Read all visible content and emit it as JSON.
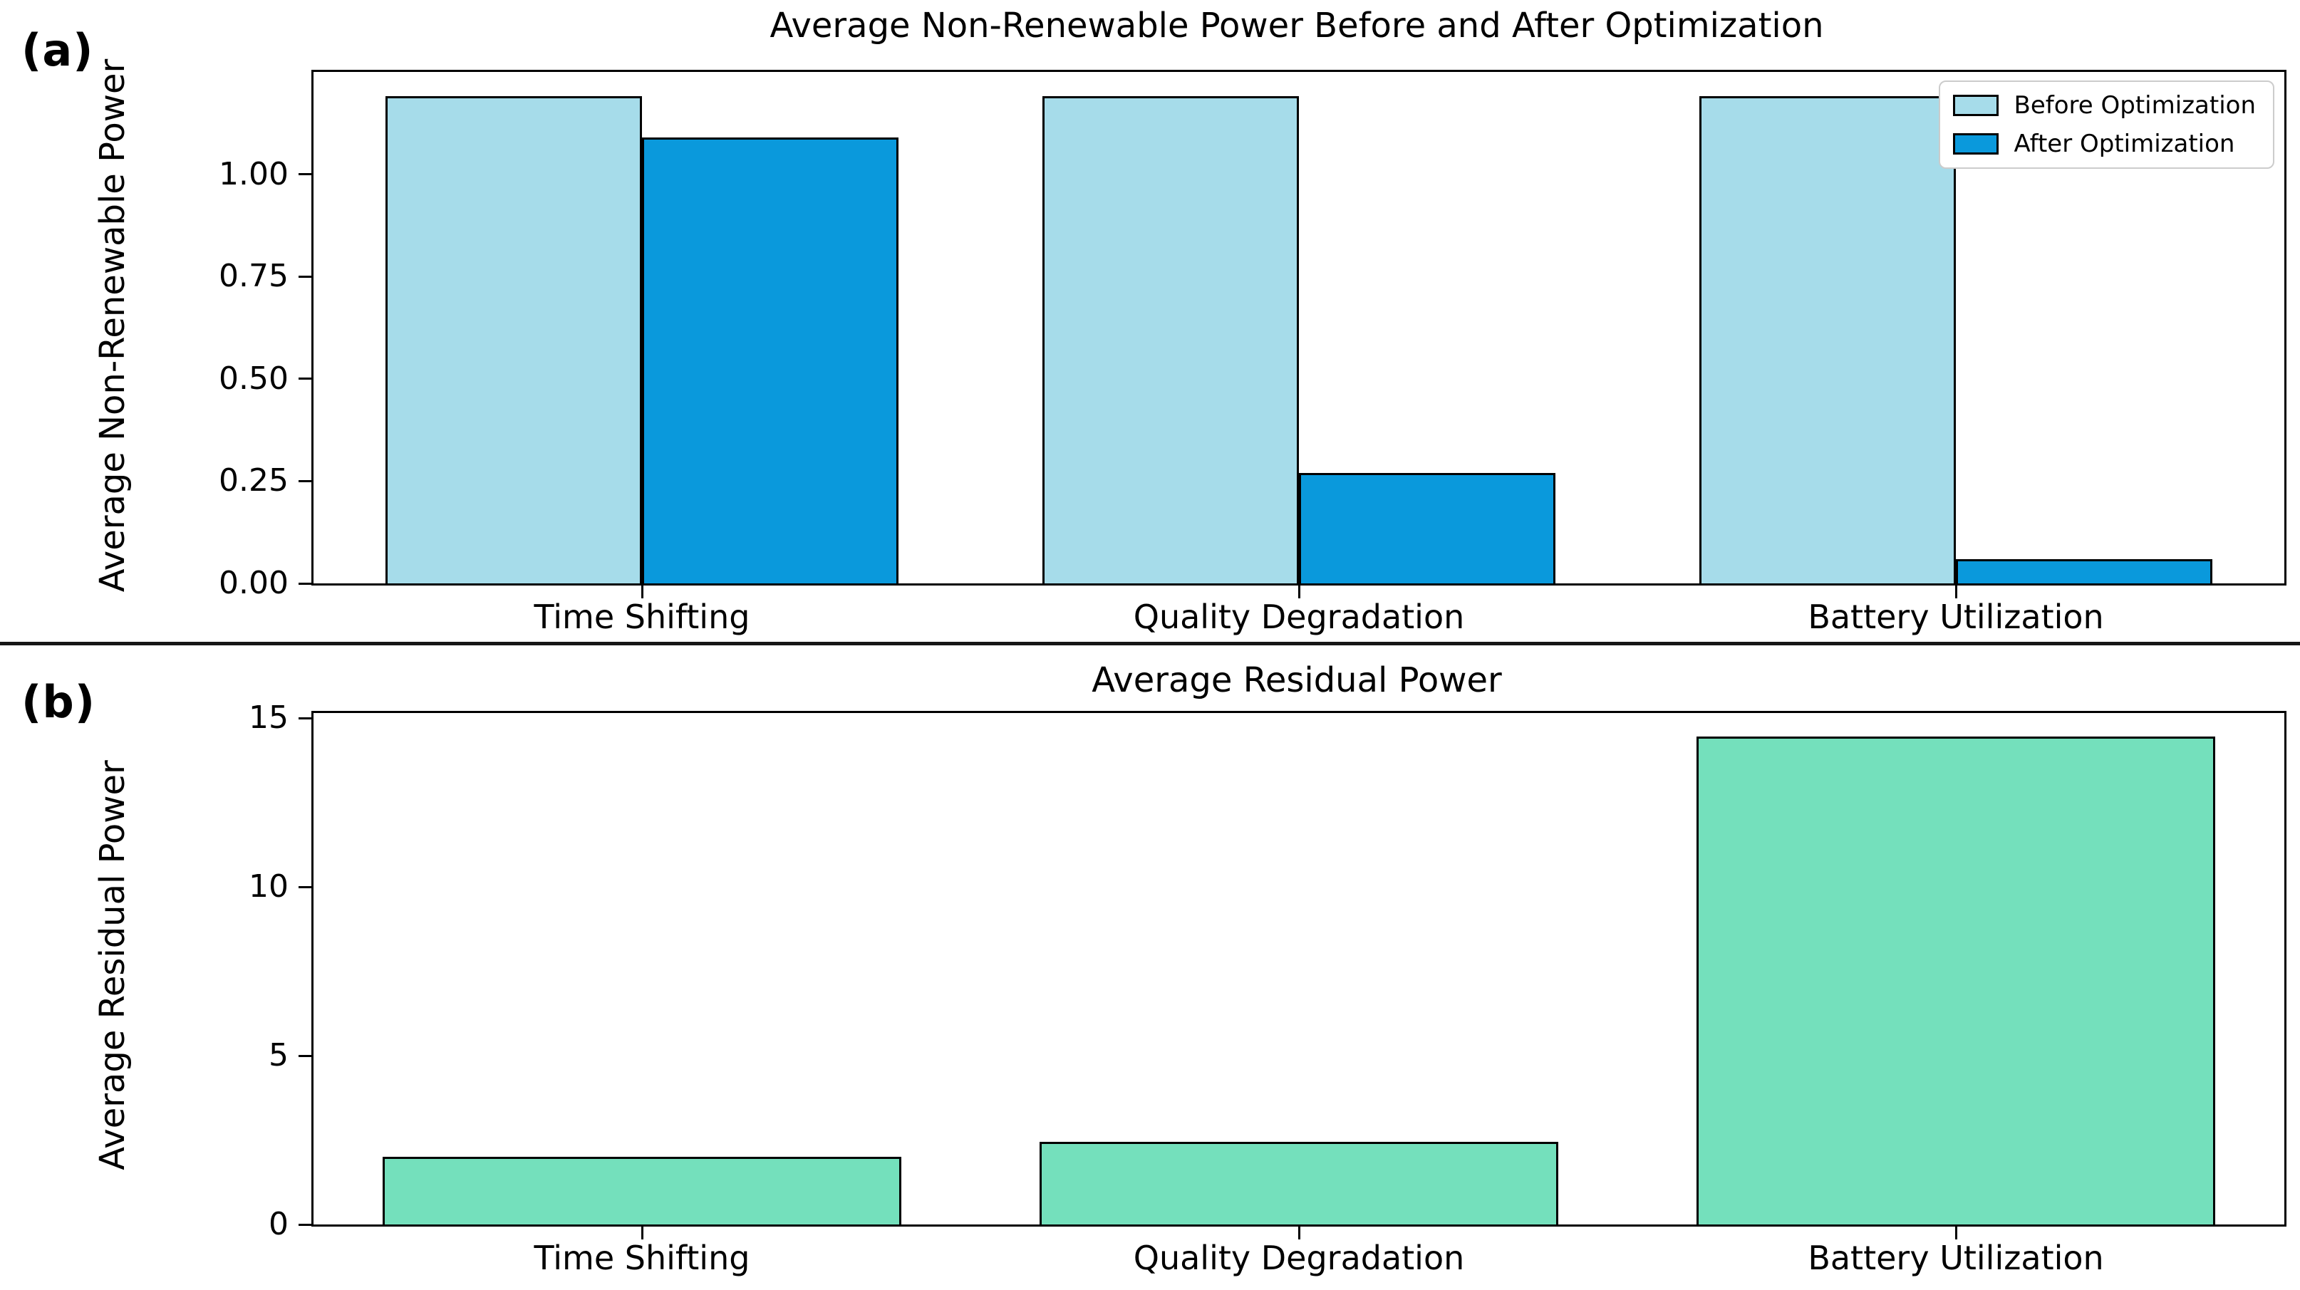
{
  "figure": {
    "panel_a_label": "(a)",
    "panel_b_label": "(b)"
  },
  "chart_data": [
    {
      "id": "a",
      "type": "bar",
      "title": "Average Non-Renewable Power Before and After Optimization",
      "ylabel": "Average Non-Renewable Power",
      "xlabel": "",
      "categories": [
        "Time Shifting",
        "Quality Degradation",
        "Battery Utilization"
      ],
      "series": [
        {
          "name": "Before Optimization",
          "color": "#a6dcea",
          "values": [
            1.19,
            1.19,
            1.19
          ]
        },
        {
          "name": "After Optimization",
          "color": "#0a99dc",
          "values": [
            1.09,
            0.27,
            0.06
          ]
        }
      ],
      "ylim": [
        0,
        1.25
      ],
      "yticks": [
        0,
        0.25,
        0.5,
        0.75,
        1.0
      ],
      "ytick_labels": [
        "0.00",
        "0.25",
        "0.50",
        "0.75",
        "1.00"
      ],
      "grid": false,
      "bar_edge_color": "#000000",
      "bar_width_fraction": 0.39,
      "legend": {
        "position": "upper right",
        "entries": [
          "Before Optimization",
          "After Optimization"
        ]
      }
    },
    {
      "id": "b",
      "type": "bar",
      "title": "Average Residual Power",
      "ylabel": "Average Residual Power",
      "xlabel": "",
      "categories": [
        "Time Shifting",
        "Quality Degradation",
        "Battery Utilization"
      ],
      "series": [
        {
          "name": "Average Residual Power",
          "color": "#74e0bc",
          "values": [
            2.0,
            2.45,
            14.45
          ]
        }
      ],
      "ylim": [
        0,
        15.15
      ],
      "yticks": [
        0,
        5,
        10,
        15
      ],
      "ytick_labels": [
        "0",
        "5",
        "10",
        "15"
      ],
      "grid": false,
      "bar_edge_color": "#000000",
      "bar_width_fraction": 0.79,
      "legend": null
    }
  ]
}
